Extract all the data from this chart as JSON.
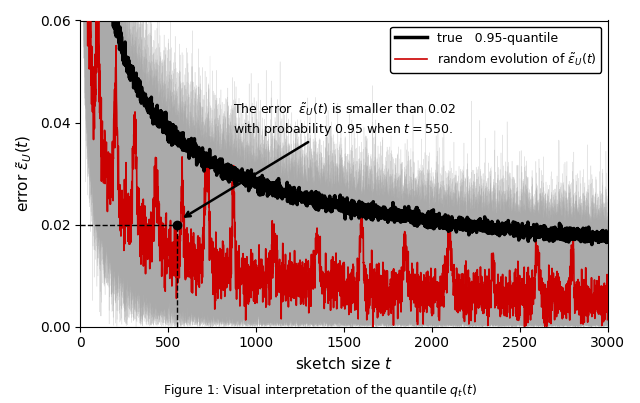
{
  "xlabel": "sketch size $t$",
  "ylabel": "error $\\tilde{\\epsilon}_U(t)$",
  "xlim": [
    0,
    3000
  ],
  "ylim": [
    0.0,
    0.06
  ],
  "yticks": [
    0.0,
    0.02,
    0.04,
    0.06
  ],
  "xticks": [
    0,
    500,
    1000,
    1500,
    2000,
    2500,
    3000
  ],
  "t_star": 550,
  "q_star": 0.02,
  "n_gray_lines": 200,
  "annotation_text": "The error  $\\tilde{\\epsilon}_U(t)$ is smaller than 0.02\nwith probability 0.95 when $t = 550$.",
  "legend_entries": [
    "true   0.95-quantile",
    "random evolution of $\\tilde{\\epsilon}_U(t)$"
  ],
  "gray_color": "#aaaaaa",
  "red_color": "#cc0000",
  "black_color": "#000000",
  "figure_caption": "Figure 1: Visual interpretation of the quantile $q_t(t)$"
}
